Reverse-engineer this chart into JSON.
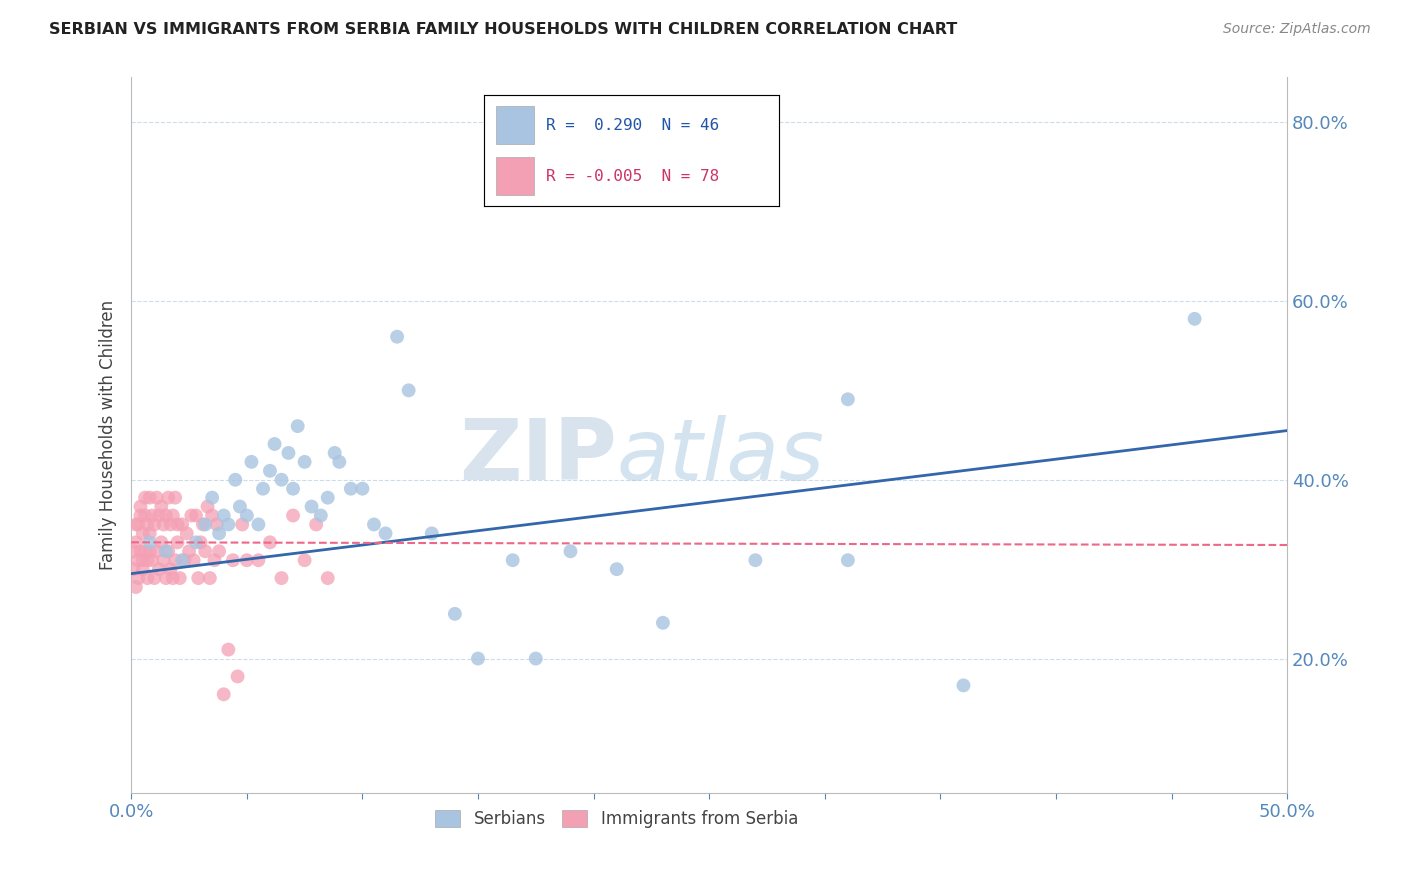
{
  "title": "SERBIAN VS IMMIGRANTS FROM SERBIA FAMILY HOUSEHOLDS WITH CHILDREN CORRELATION CHART",
  "source": "Source: ZipAtlas.com",
  "ylabel": "Family Households with Children",
  "xlim": [
    0.0,
    0.5
  ],
  "ylim": [
    0.05,
    0.85
  ],
  "xticks": [
    0.0,
    0.05,
    0.1,
    0.15,
    0.2,
    0.25,
    0.3,
    0.35,
    0.4,
    0.45,
    0.5
  ],
  "xticklabels": [
    "0.0%",
    "",
    "",
    "",
    "",
    "",
    "",
    "",
    "",
    "",
    "50.0%"
  ],
  "yticks": [
    0.2,
    0.4,
    0.6,
    0.8
  ],
  "yticklabels": [
    "20.0%",
    "40.0%",
    "60.0%",
    "80.0%"
  ],
  "blue_R": 0.29,
  "blue_N": 46,
  "pink_R": -0.005,
  "pink_N": 78,
  "blue_color": "#a8c4e0",
  "pink_color": "#f4a0b4",
  "blue_line_color": "#3366aa",
  "pink_line_color": "#ee6688",
  "legend_label_blue": "Serbians",
  "legend_label_pink": "Immigrants from Serbia",
  "blue_x": [
    0.008,
    0.015,
    0.022,
    0.028,
    0.032,
    0.035,
    0.038,
    0.04,
    0.042,
    0.045,
    0.047,
    0.05,
    0.052,
    0.055,
    0.057,
    0.06,
    0.062,
    0.065,
    0.068,
    0.07,
    0.072,
    0.075,
    0.078,
    0.082,
    0.085,
    0.088,
    0.09,
    0.095,
    0.1,
    0.105,
    0.11,
    0.115,
    0.12,
    0.13,
    0.14,
    0.15,
    0.165,
    0.175,
    0.19,
    0.21,
    0.23,
    0.27,
    0.31,
    0.36,
    0.46,
    0.31
  ],
  "blue_y": [
    0.33,
    0.32,
    0.31,
    0.33,
    0.35,
    0.38,
    0.34,
    0.36,
    0.35,
    0.4,
    0.37,
    0.36,
    0.42,
    0.35,
    0.39,
    0.41,
    0.44,
    0.4,
    0.43,
    0.39,
    0.46,
    0.42,
    0.37,
    0.36,
    0.38,
    0.43,
    0.42,
    0.39,
    0.39,
    0.35,
    0.34,
    0.56,
    0.5,
    0.34,
    0.25,
    0.2,
    0.31,
    0.2,
    0.32,
    0.3,
    0.24,
    0.31,
    0.49,
    0.17,
    0.58,
    0.31
  ],
  "pink_x": [
    0.001,
    0.001,
    0.002,
    0.002,
    0.002,
    0.003,
    0.003,
    0.003,
    0.004,
    0.004,
    0.004,
    0.005,
    0.005,
    0.005,
    0.006,
    0.006,
    0.006,
    0.007,
    0.007,
    0.007,
    0.008,
    0.008,
    0.008,
    0.009,
    0.009,
    0.01,
    0.01,
    0.011,
    0.011,
    0.012,
    0.012,
    0.013,
    0.013,
    0.014,
    0.014,
    0.015,
    0.015,
    0.016,
    0.016,
    0.017,
    0.017,
    0.018,
    0.018,
    0.019,
    0.019,
    0.02,
    0.02,
    0.021,
    0.022,
    0.023,
    0.024,
    0.025,
    0.026,
    0.027,
    0.028,
    0.029,
    0.03,
    0.031,
    0.032,
    0.033,
    0.034,
    0.035,
    0.036,
    0.037,
    0.038,
    0.04,
    0.042,
    0.044,
    0.046,
    0.048,
    0.05,
    0.055,
    0.06,
    0.065,
    0.07,
    0.075,
    0.08,
    0.085
  ],
  "pink_y": [
    0.32,
    0.3,
    0.35,
    0.28,
    0.33,
    0.31,
    0.35,
    0.29,
    0.36,
    0.32,
    0.37,
    0.31,
    0.34,
    0.3,
    0.36,
    0.32,
    0.38,
    0.31,
    0.35,
    0.29,
    0.34,
    0.32,
    0.38,
    0.31,
    0.36,
    0.29,
    0.35,
    0.32,
    0.38,
    0.3,
    0.36,
    0.33,
    0.37,
    0.31,
    0.35,
    0.29,
    0.36,
    0.32,
    0.38,
    0.3,
    0.35,
    0.29,
    0.36,
    0.31,
    0.38,
    0.33,
    0.35,
    0.29,
    0.35,
    0.31,
    0.34,
    0.32,
    0.36,
    0.31,
    0.36,
    0.29,
    0.33,
    0.35,
    0.32,
    0.37,
    0.29,
    0.36,
    0.31,
    0.35,
    0.32,
    0.16,
    0.21,
    0.31,
    0.18,
    0.35,
    0.31,
    0.31,
    0.33,
    0.29,
    0.36,
    0.31,
    0.35,
    0.29
  ],
  "blue_trend_x": [
    0.0,
    0.5
  ],
  "blue_trend_y": [
    0.295,
    0.455
  ],
  "pink_trend_x": [
    0.0,
    0.5
  ],
  "pink_trend_y": [
    0.33,
    0.327
  ]
}
